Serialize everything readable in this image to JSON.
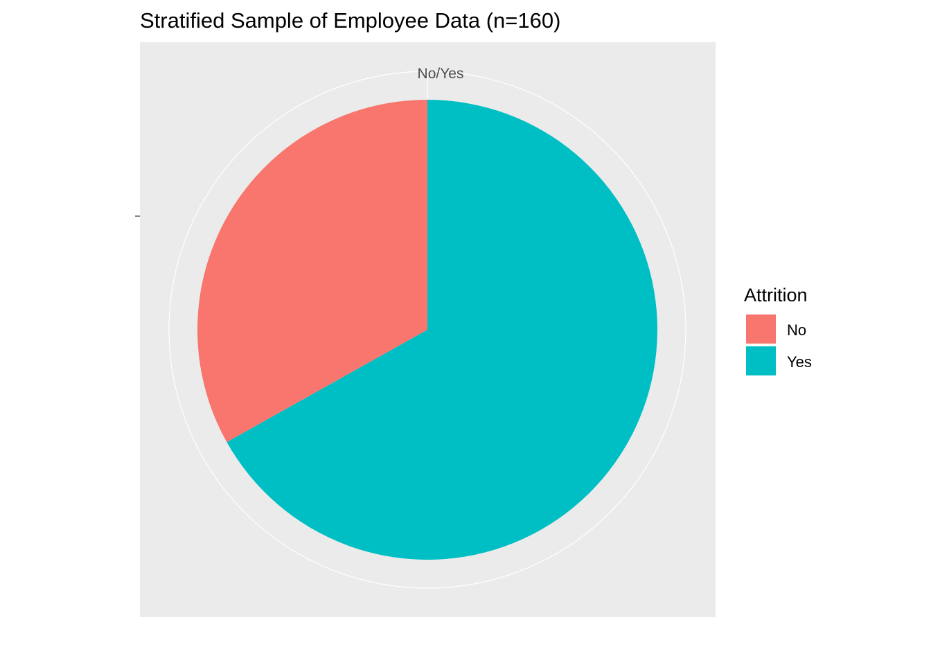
{
  "chart_data": {
    "type": "pie",
    "title": "Stratified Sample of Employee Data (n=160)",
    "theta_tick_label": "No/Yes",
    "legend": {
      "title": "Attrition",
      "placement": "right"
    },
    "slices": [
      {
        "label": "No",
        "value": 53,
        "color": "#F8766D"
      },
      {
        "label": "Yes",
        "value": 107,
        "color": "#00BFC4"
      }
    ],
    "total": 160,
    "panel_background": "#EBEBEB",
    "grid": true
  }
}
